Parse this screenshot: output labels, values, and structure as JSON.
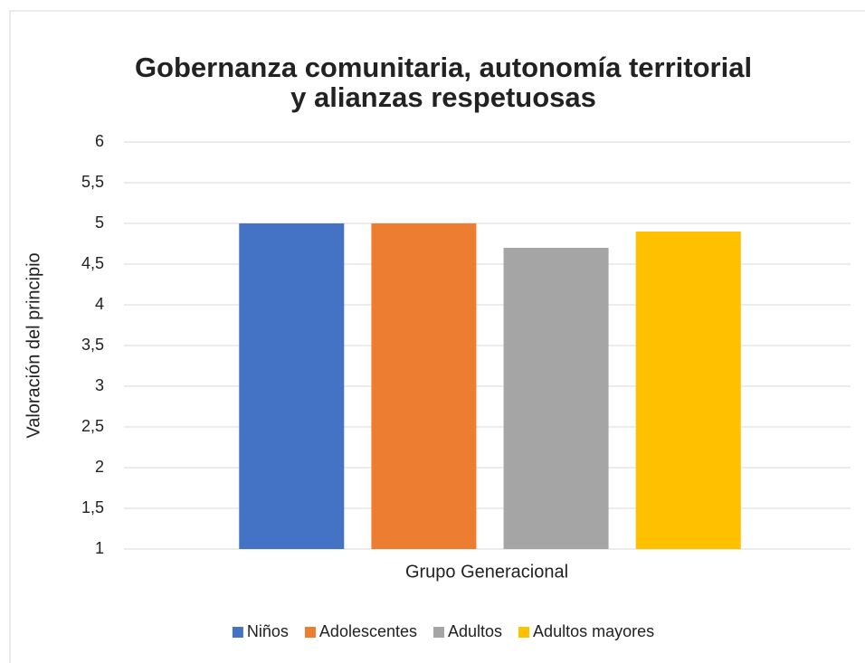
{
  "chart_data": {
    "type": "bar",
    "title": [
      "Gobernanza comunitaria, autonomía territorial",
      "y alianzas respetuosas"
    ],
    "ylabel": "Valoración del principio",
    "xlabel": "Grupo Generacional",
    "categories": [
      null
    ],
    "series": [
      {
        "name": "Niños",
        "color": "#4472c4",
        "values": [
          5
        ]
      },
      {
        "name": "Adolescentes",
        "color": "#ed7d31",
        "values": [
          5
        ]
      },
      {
        "name": "Adultos",
        "color": "#a5a5a5",
        "values": [
          4.7
        ]
      },
      {
        "name": "Adultos mayores",
        "color": "#ffc000",
        "values": [
          4.9
        ]
      }
    ],
    "ylim": [
      1,
      6
    ],
    "yticks": [
      1,
      {
        "value": 1.5,
        "label": "1,5"
      },
      2,
      {
        "value": 2.5,
        "label": "2,5"
      },
      3,
      {
        "value": 3.5,
        "label": "3,5"
      },
      4,
      {
        "value": 4.5,
        "label": "4,5"
      },
      5,
      {
        "value": 5.5,
        "label": "5,5"
      },
      6
    ],
    "grid": true,
    "legend": "bottom"
  }
}
